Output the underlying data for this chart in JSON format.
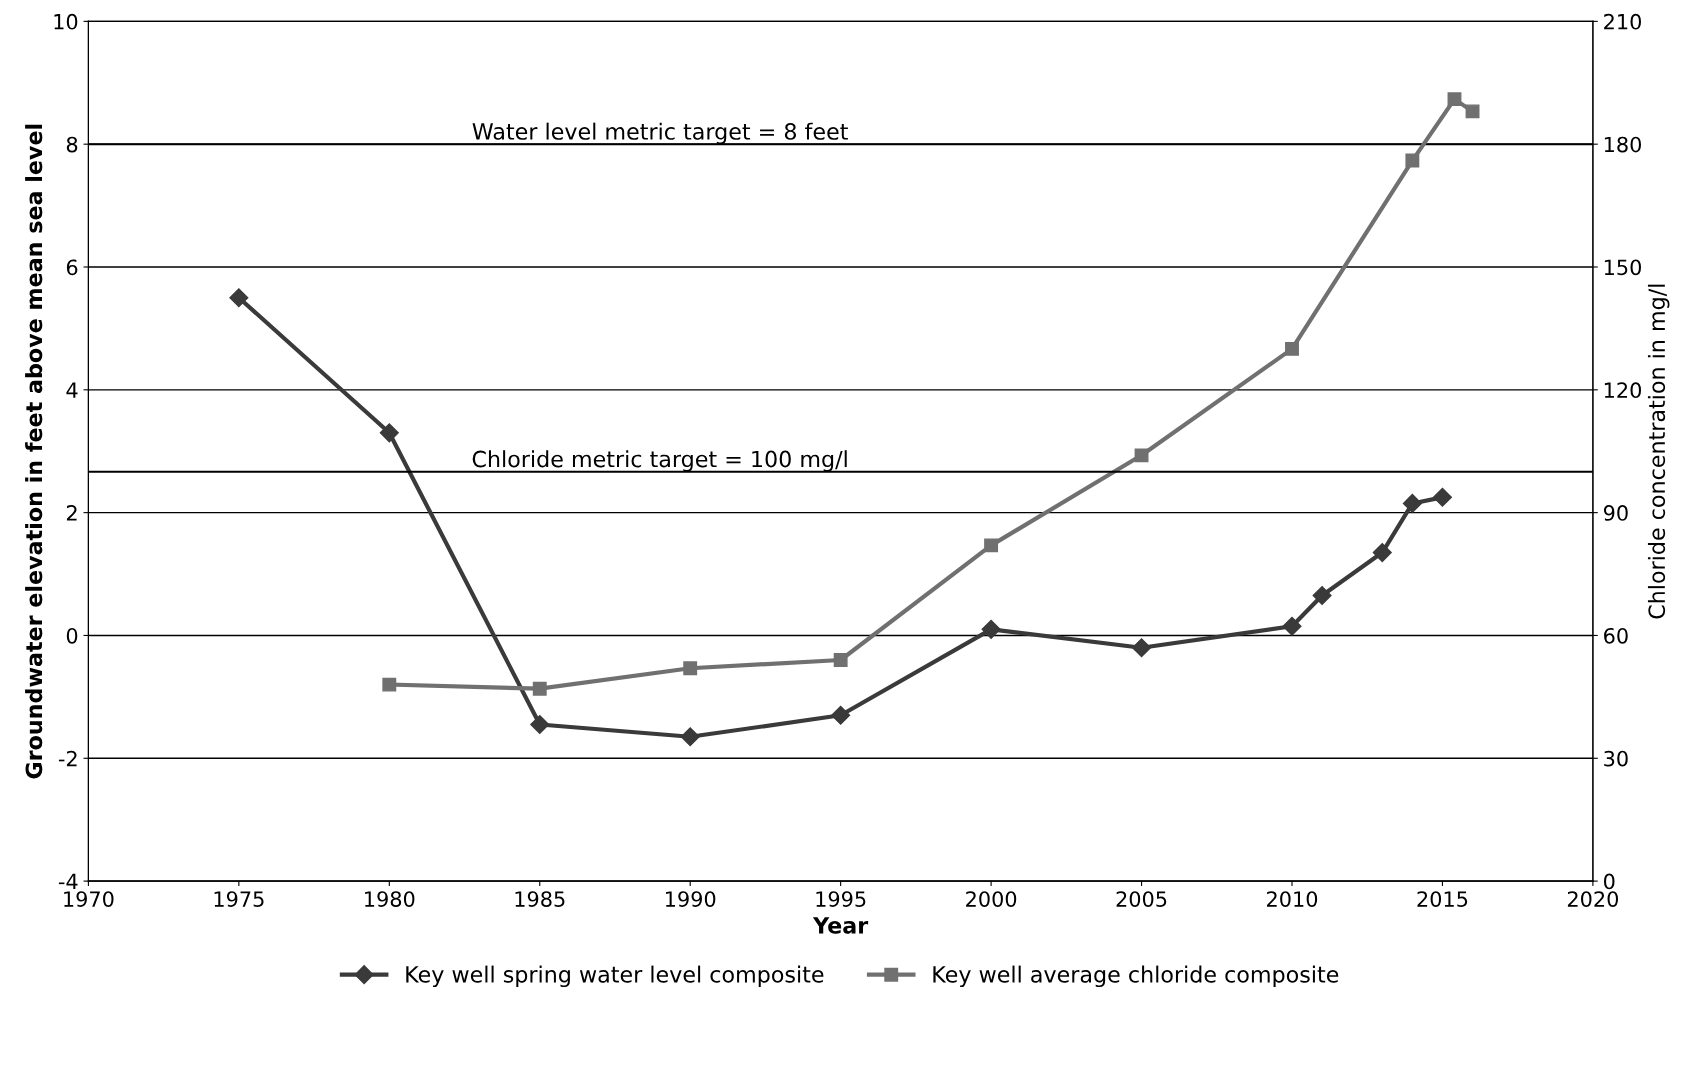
{
  "chart_data": {
    "type": "line",
    "xlabel": "Year",
    "ylabel": "Groundwater elevation in feet above mean sea level",
    "y2label": "Chloride concentration in mg/l",
    "xlim": [
      1970,
      2020
    ],
    "xticks": [
      1970,
      1975,
      1980,
      1985,
      1990,
      1995,
      2000,
      2005,
      2010,
      2015,
      2020
    ],
    "ylim": [
      -4,
      10
    ],
    "yticks": [
      -4,
      -2,
      0,
      2,
      4,
      6,
      8,
      10
    ],
    "y2lim": [
      0,
      210
    ],
    "y2ticks": [
      0,
      30,
      60,
      90,
      120,
      150,
      180,
      210
    ],
    "grid": "y",
    "legend": "bottom",
    "series": [
      {
        "name": "Key well spring water level composite",
        "color": "#3a3a3a",
        "marker": "diamond",
        "x": [
          1975,
          1980,
          1985,
          1990,
          1995,
          2000,
          2005,
          2010,
          2011,
          2013,
          2014,
          2015
        ],
        "values": [
          5.5,
          3.3,
          -1.45,
          -1.65,
          -1.3,
          0.1,
          -0.2,
          0.15,
          0.65,
          1.35,
          2.15,
          2.25
        ]
      },
      {
        "name": "Key well average chloride composite",
        "color": "#707070",
        "marker": "square",
        "axis": "y2",
        "x": [
          1980,
          1985,
          1990,
          1995,
          2000,
          2005,
          2010,
          2014,
          2015.4,
          2016
        ],
        "values": [
          48,
          47,
          52,
          54,
          82,
          104,
          130,
          176,
          191,
          188
        ]
      }
    ],
    "ref_lines": [
      {
        "axis": "y",
        "value": 8,
        "label": "Water level metric target = 8 feet",
        "color": "#000000"
      },
      {
        "axis": "y2",
        "value": 100,
        "label": "Chloride metric target = 100 mg/l",
        "color": "#000000"
      }
    ]
  }
}
